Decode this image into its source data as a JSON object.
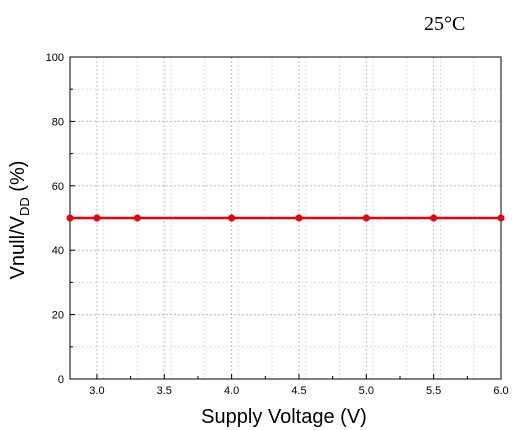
{
  "chart_data": {
    "type": "line",
    "annotation": "25°C",
    "xlabel": "Supply Voltage (V)",
    "ylabel_main": "Vnull/V",
    "ylabel_sub": "DD",
    "ylabel_unit": " (%)",
    "xlim": [
      2.8,
      6.0
    ],
    "ylim": [
      0,
      100
    ],
    "x_ticks": [
      3.0,
      3.5,
      4.0,
      4.5,
      5.0,
      5.5,
      6.0
    ],
    "x_tick_labels": [
      "3.0",
      "3.5",
      "4.0",
      "4.5",
      "5.0",
      "5.5",
      "6.0"
    ],
    "y_ticks": [
      0,
      20,
      40,
      60,
      80,
      100
    ],
    "y_tick_labels": [
      "0",
      "20",
      "40",
      "60",
      "80",
      "100"
    ],
    "grid": true,
    "series": [
      {
        "color": "#e8000b",
        "x": [
          2.8,
          3.0,
          3.3,
          4.0,
          4.5,
          5.0,
          5.5,
          6.0
        ],
        "y": [
          50,
          50,
          50,
          50,
          50,
          50,
          50,
          50
        ]
      }
    ]
  }
}
